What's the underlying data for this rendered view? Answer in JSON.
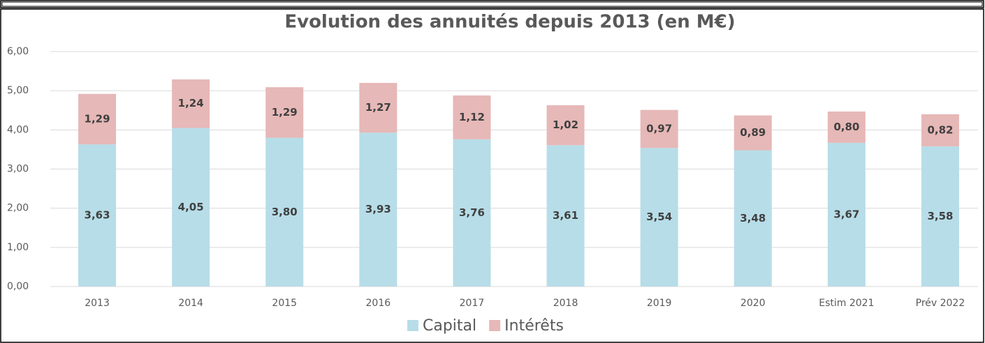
{
  "chart_data": {
    "type": "bar",
    "stacked": true,
    "title": "Evolution des annuités depuis 2013 (en M€)",
    "categories": [
      "2013",
      "2014",
      "2015",
      "2016",
      "2017",
      "2018",
      "2019",
      "2020",
      "Estim 2021",
      "Prév 2022"
    ],
    "series": [
      {
        "name": "Capital",
        "color": "#b7dde8",
        "values": [
          3.63,
          4.05,
          3.8,
          3.93,
          3.76,
          3.61,
          3.54,
          3.48,
          3.67,
          3.58
        ],
        "value_labels": [
          "3,63",
          "4,05",
          "3,80",
          "3,93",
          "3,76",
          "3,61",
          "3,54",
          "3,48",
          "3,67",
          "3,58"
        ]
      },
      {
        "name": "Intérêts",
        "color": "#e6b8b7",
        "values": [
          1.29,
          1.24,
          1.29,
          1.27,
          1.12,
          1.02,
          0.97,
          0.89,
          0.8,
          0.82
        ],
        "value_labels": [
          "1,29",
          "1,24",
          "1,29",
          "1,27",
          "1,12",
          "1,02",
          "0,97",
          "0,89",
          "0,80",
          "0,82"
        ]
      }
    ],
    "ylim": [
      0,
      6
    ],
    "yticks": [
      {
        "value": 0,
        "label": "0,00"
      },
      {
        "value": 1,
        "label": "1,00"
      },
      {
        "value": 2,
        "label": "2,00"
      },
      {
        "value": 3,
        "label": "3,00"
      },
      {
        "value": 4,
        "label": "4,00"
      },
      {
        "value": 5,
        "label": "5,00"
      },
      {
        "value": 6,
        "label": "6,00"
      }
    ],
    "grid": true,
    "legend": "bottom"
  }
}
